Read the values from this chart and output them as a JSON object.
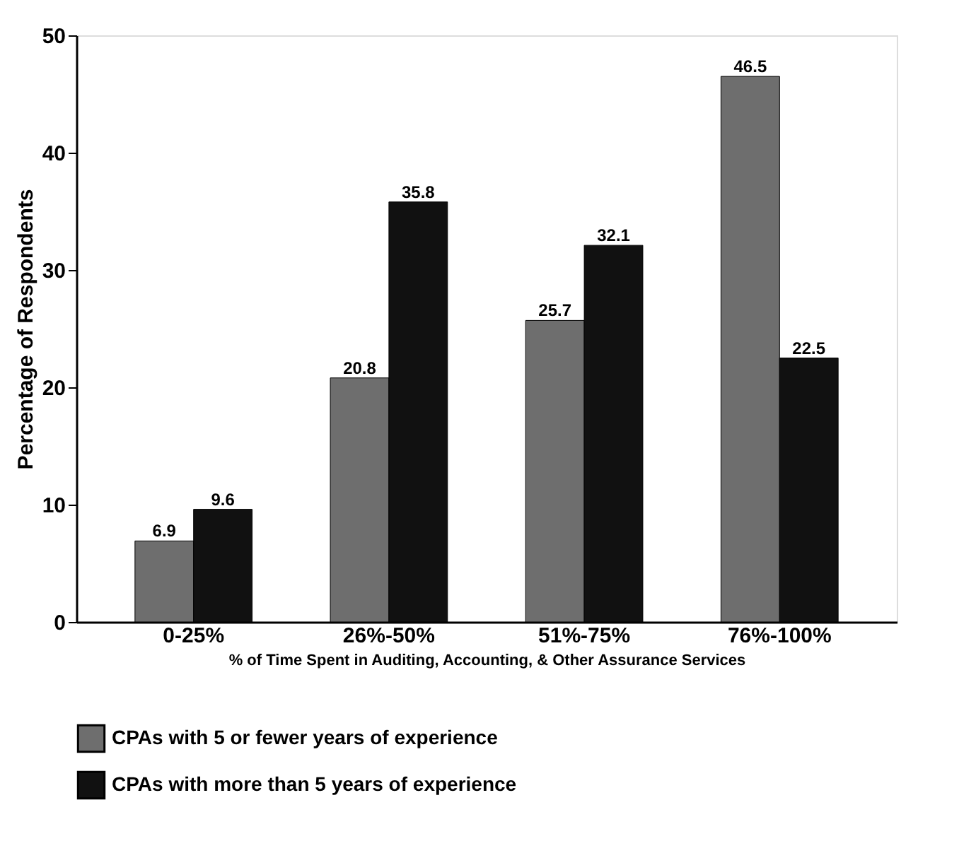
{
  "chart_data": {
    "type": "bar",
    "xlabel": "% of Time Spent in Auditing, Accounting, & Other Assurance Services",
    "ylabel": "Percentage of Respondents",
    "categories": [
      "0-25%",
      "26%-50%",
      "51%-75%",
      "76%-100%"
    ],
    "series": [
      {
        "name": "CPAs with 5 or fewer years of experience",
        "color": "#6e6e6e",
        "values": [
          6.9,
          20.8,
          25.7,
          46.5
        ]
      },
      {
        "name": "CPAs with more than 5 years of experience",
        "color": "#111111",
        "values": [
          9.6,
          35.8,
          32.1,
          22.5
        ]
      }
    ],
    "ylim": [
      0,
      50
    ],
    "yticks": [
      0,
      10,
      20,
      30,
      40,
      50
    ],
    "grid": false,
    "legend": "bottom",
    "data_labels": true
  }
}
